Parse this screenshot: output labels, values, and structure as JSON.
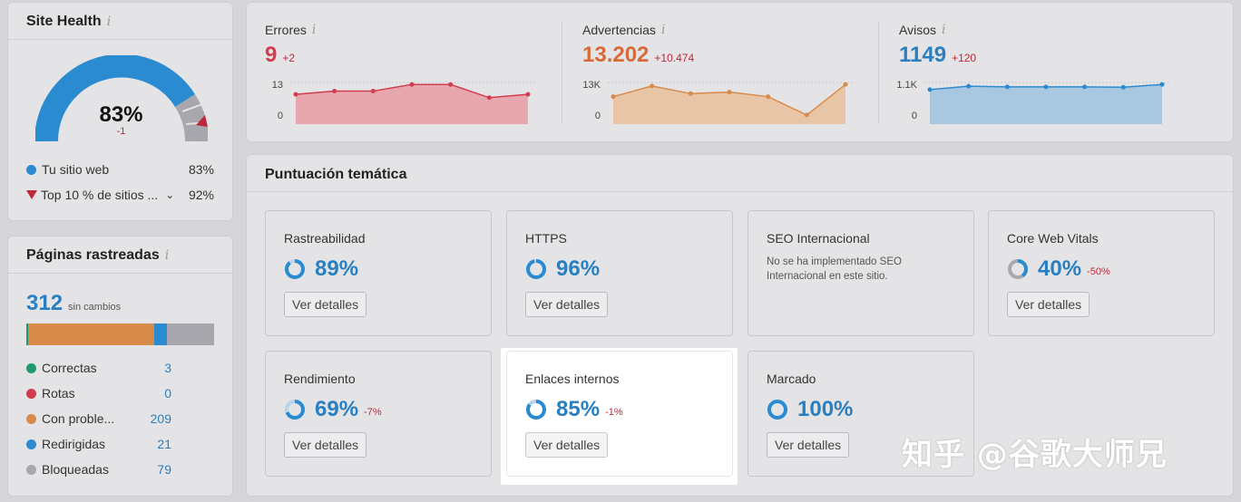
{
  "site_health": {
    "title": "Site Health",
    "info_icon": "i",
    "score": "83%",
    "score_change": "-1",
    "score_value": 83,
    "legend": [
      {
        "label": "Tu sitio web",
        "value": "83%",
        "color": "#2a8bd0",
        "marker": "dot"
      },
      {
        "label": "Top 10 % de sitios ...",
        "value": "92%",
        "color": "#c0283a",
        "marker": "triangle"
      }
    ]
  },
  "pages": {
    "title": "Páginas rastreadas",
    "info_icon": "i",
    "total": "312",
    "total_note": "sin cambios",
    "bar_colors": [
      "#1f9a6e",
      "#d88a4a",
      "#2a8bd0",
      "#a7a7ad"
    ],
    "bar_fractions": [
      0.01,
      0.67,
      0.07,
      0.25
    ],
    "rows": [
      {
        "label": "Correctas",
        "count": "3",
        "color": "#1f9a6e"
      },
      {
        "label": "Rotas",
        "count": "0",
        "color": "#d23c4c"
      },
      {
        "label": "Con proble...",
        "count": "209",
        "color": "#d88a4a"
      },
      {
        "label": "Redirigidas",
        "count": "21",
        "color": "#2a8bd0"
      },
      {
        "label": "Bloqueadas",
        "count": "79",
        "color": "#a7a7ad"
      }
    ]
  },
  "metrics": [
    {
      "label": "Errores",
      "value": "9",
      "delta": "+2",
      "color": "#d23c4c",
      "fill": "#e8a6ae",
      "ymax_label": "13",
      "ymin_label": "0",
      "points": [
        9,
        10,
        10,
        12,
        12,
        8,
        9
      ]
    },
    {
      "label": "Advertencias",
      "value": "13.202",
      "delta": "+10.474",
      "color": "#d88a4a",
      "fill": "#e9c5a8",
      "ymax_label": "13K",
      "ymin_label": "0",
      "points": [
        9,
        12.5,
        10,
        10.5,
        9,
        3,
        13
      ]
    },
    {
      "label": "Avisos",
      "value": "1149",
      "delta": "+120",
      "color": "#2a8bd0",
      "fill": "#a8c8e2",
      "ymax_label": "1.1K",
      "ymin_label": "0",
      "points": [
        1.0,
        1.1,
        1.08,
        1.08,
        1.08,
        1.07,
        1.15
      ]
    }
  ],
  "thematic": {
    "title": "Puntuación temática",
    "button_label": "Ver detalles",
    "tiles": [
      {
        "title": "Rastreabilidad",
        "score": "89%",
        "change": "",
        "pct": 89
      },
      {
        "title": "HTTPS",
        "score": "96%",
        "change": "",
        "pct": 96
      },
      {
        "title": "SEO Internacional",
        "score": "",
        "change": "",
        "description": "No se ha implementado SEO Internacional en este sitio."
      },
      {
        "title": "Core Web Vitals",
        "score": "40%",
        "change": "-50%",
        "pct": 40
      },
      {
        "title": "Rendimiento",
        "score": "69%",
        "change": "-7%",
        "pct": 69
      },
      {
        "title": "Enlaces internos",
        "score": "85%",
        "change": "-1%",
        "pct": 85,
        "highlighted": true
      },
      {
        "title": "Marcado",
        "score": "100%",
        "change": "",
        "pct": 100
      }
    ]
  },
  "watermark": "知乎 @谷歌大师兄"
}
